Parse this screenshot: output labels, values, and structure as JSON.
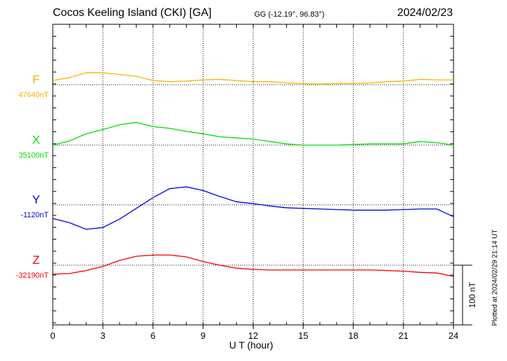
{
  "header": {
    "station": "Cocos Keeling Island (CKI)  [GA]",
    "coords": "GG (-12.19°,  96.83°)",
    "date": "2024/02/23"
  },
  "footer": {
    "plotted": "Plotted at 2024/02/29 21:14 UT",
    "scale_label": "100 nT"
  },
  "chart_data": {
    "type": "line",
    "xlabel": "U T (hour)",
    "xlim": [
      0,
      24
    ],
    "xticks": [
      "0",
      "3",
      "6",
      "9",
      "12",
      "15",
      "18",
      "21",
      "24"
    ],
    "y_units": "nT offset from baseline",
    "scale_nT": 100,
    "grid": true,
    "x": [
      0,
      1,
      2,
      3,
      4,
      5,
      6,
      7,
      8,
      9,
      10,
      11,
      12,
      13,
      14,
      15,
      16,
      17,
      18,
      19,
      20,
      21,
      22,
      23,
      24
    ],
    "series": [
      {
        "name": "F",
        "baseline_label": "47640nT",
        "color": "#f5b400",
        "values": [
          7,
          12,
          20,
          20,
          17,
          14,
          7,
          5,
          6,
          8,
          9,
          7,
          5,
          5,
          3,
          2,
          1,
          2,
          2,
          3,
          5,
          6,
          9,
          8,
          8
        ]
      },
      {
        "name": "X",
        "baseline_label": "35100nT",
        "color": "#00e000",
        "values": [
          0,
          7,
          19,
          26,
          34,
          38,
          31,
          28,
          23,
          19,
          14,
          12,
          10,
          6,
          2,
          0,
          0,
          0,
          1,
          2,
          2,
          2,
          6,
          4,
          0
        ]
      },
      {
        "name": "Y",
        "baseline_label": "-1120nT",
        "color": "#0000e0",
        "values": [
          -23,
          -30,
          -41,
          -38,
          -24,
          -6,
          12,
          27,
          30,
          24,
          14,
          5,
          2,
          -2,
          -5,
          -6,
          -7,
          -8,
          -9,
          -9,
          -9,
          -8,
          -7,
          -7,
          -20
        ]
      },
      {
        "name": "Z",
        "baseline_label": "-32190nT",
        "color": "#f00000",
        "values": [
          -15,
          -14,
          -9,
          -2,
          8,
          15,
          17,
          17,
          14,
          6,
          0,
          -5,
          -7,
          -8,
          -8,
          -8,
          -8,
          -8,
          -8,
          -8,
          -9,
          -10,
          -12,
          -13,
          -19
        ]
      }
    ]
  }
}
